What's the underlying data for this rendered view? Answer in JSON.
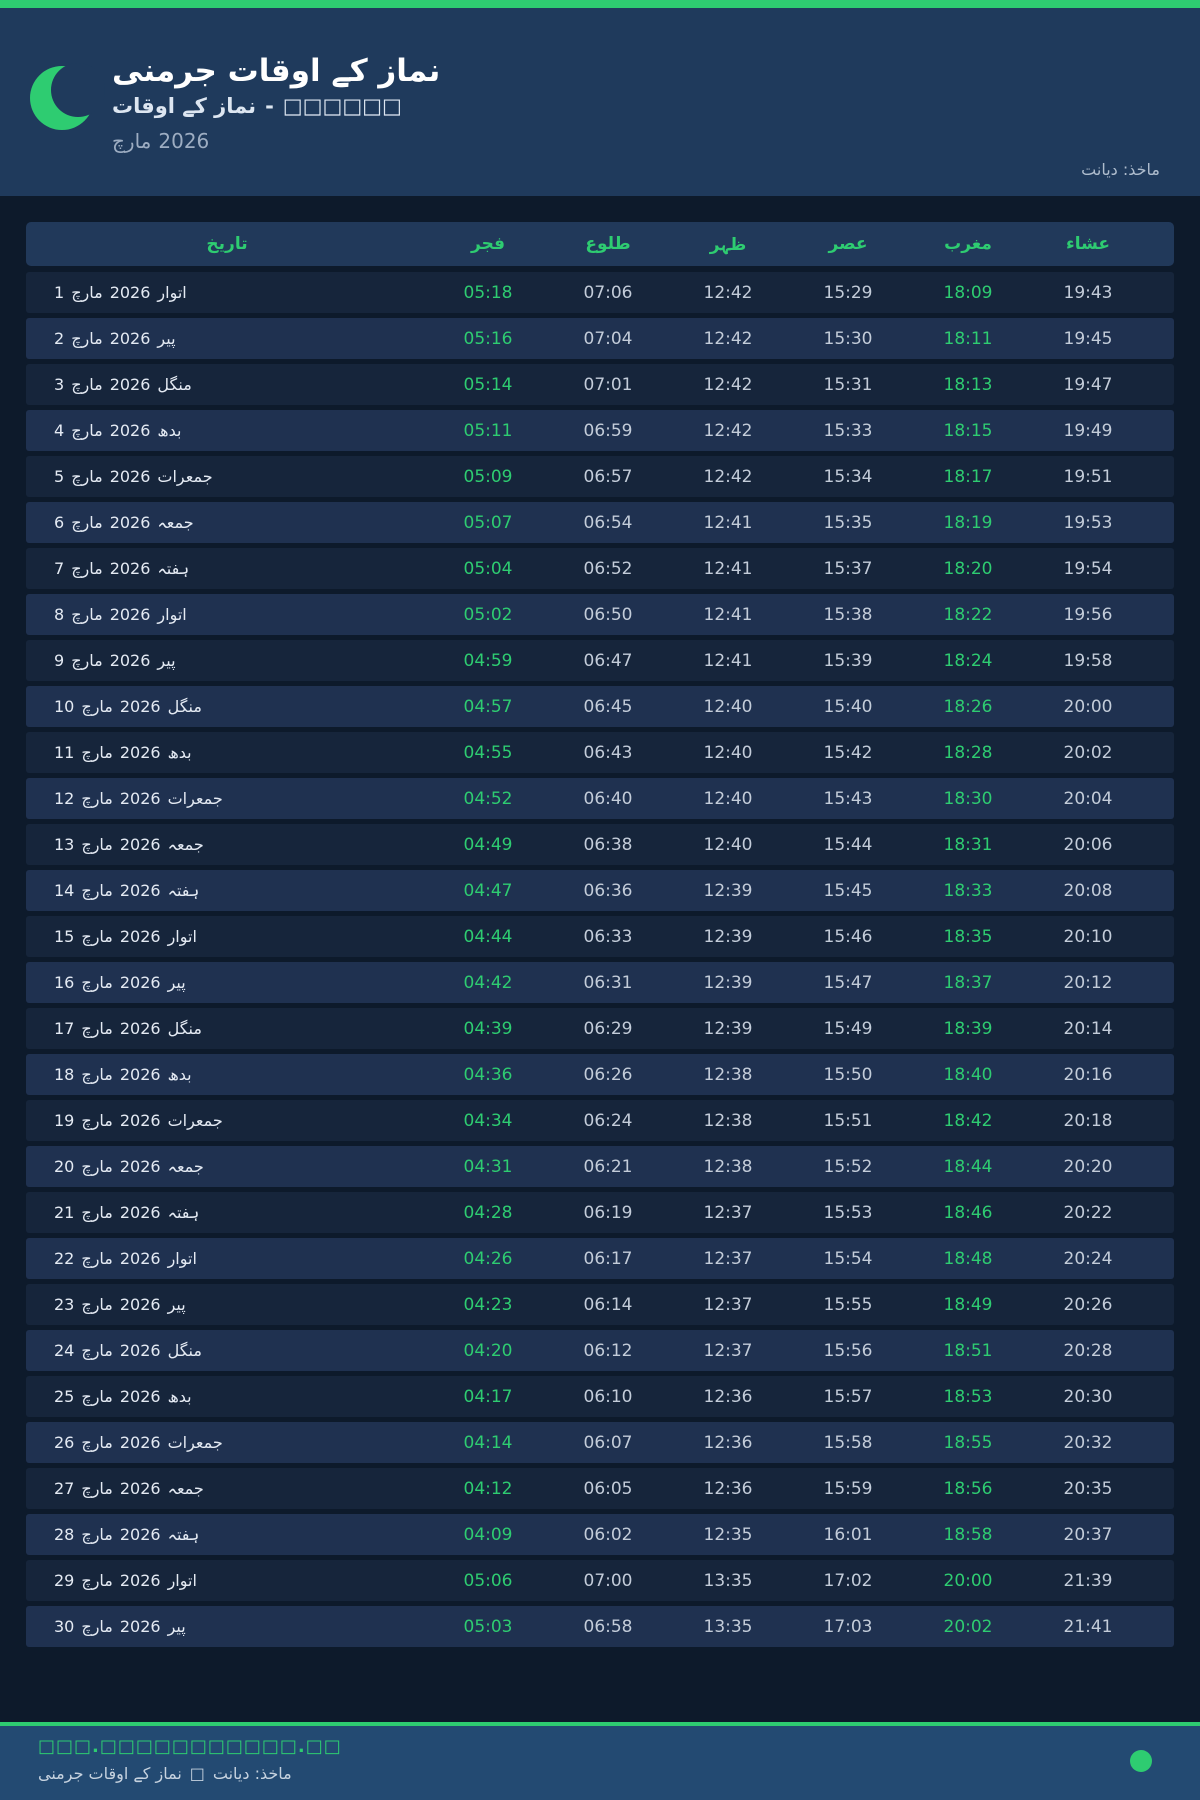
{
  "header": {
    "title": "نماز کے اوقات جرمنی",
    "subtitle_prefix": "نماز کے اوقات",
    "subtitle_separator": "-",
    "subtitle_missing_text": "□□□□□□",
    "month_label": "مارچ",
    "year": "2026",
    "source_note": "ماخذ: دیانت"
  },
  "logo": {
    "icon": "crescent-moon-icon",
    "color": "#2ecc71"
  },
  "colors": {
    "accent_green": "#2ecc71",
    "page_bg": "#0d1a2b",
    "header_bg": "#1f3a5c",
    "table_header_bg": "#21395a",
    "row_odd_bg": "#16253b",
    "row_even_bg": "#1f3150",
    "footer_bg": "#234a72",
    "time_text": "#c3ccd9",
    "date_text": "#e4eaf3"
  },
  "table": {
    "columns": [
      {
        "key": "date",
        "label": "تاریخ"
      },
      {
        "key": "fajr",
        "label": "فجر"
      },
      {
        "key": "sunrise",
        "label": "طلوع"
      },
      {
        "key": "zuhr",
        "label": "ظہر"
      },
      {
        "key": "asr",
        "label": "عصر"
      },
      {
        "key": "maghrib",
        "label": "مغرب"
      },
      {
        "key": "isha",
        "label": "عشاء"
      }
    ],
    "rows": [
      {
        "day": "1",
        "month": "مارچ",
        "year": "2026",
        "weekday": "اتوار",
        "fajr": "05:18",
        "sunrise": "07:06",
        "zuhr": "12:42",
        "asr": "15:29",
        "maghrib": "18:09",
        "isha": "19:43"
      },
      {
        "day": "2",
        "month": "مارچ",
        "year": "2026",
        "weekday": "پیر",
        "fajr": "05:16",
        "sunrise": "07:04",
        "zuhr": "12:42",
        "asr": "15:30",
        "maghrib": "18:11",
        "isha": "19:45"
      },
      {
        "day": "3",
        "month": "مارچ",
        "year": "2026",
        "weekday": "منگل",
        "fajr": "05:14",
        "sunrise": "07:01",
        "zuhr": "12:42",
        "asr": "15:31",
        "maghrib": "18:13",
        "isha": "19:47"
      },
      {
        "day": "4",
        "month": "مارچ",
        "year": "2026",
        "weekday": "بدھ",
        "fajr": "05:11",
        "sunrise": "06:59",
        "zuhr": "12:42",
        "asr": "15:33",
        "maghrib": "18:15",
        "isha": "19:49"
      },
      {
        "day": "5",
        "month": "مارچ",
        "year": "2026",
        "weekday": "جمعرات",
        "fajr": "05:09",
        "sunrise": "06:57",
        "zuhr": "12:42",
        "asr": "15:34",
        "maghrib": "18:17",
        "isha": "19:51"
      },
      {
        "day": "6",
        "month": "مارچ",
        "year": "2026",
        "weekday": "جمعہ",
        "fajr": "05:07",
        "sunrise": "06:54",
        "zuhr": "12:41",
        "asr": "15:35",
        "maghrib": "18:19",
        "isha": "19:53"
      },
      {
        "day": "7",
        "month": "مارچ",
        "year": "2026",
        "weekday": "ہفتہ",
        "fajr": "05:04",
        "sunrise": "06:52",
        "zuhr": "12:41",
        "asr": "15:37",
        "maghrib": "18:20",
        "isha": "19:54"
      },
      {
        "day": "8",
        "month": "مارچ",
        "year": "2026",
        "weekday": "اتوار",
        "fajr": "05:02",
        "sunrise": "06:50",
        "zuhr": "12:41",
        "asr": "15:38",
        "maghrib": "18:22",
        "isha": "19:56"
      },
      {
        "day": "9",
        "month": "مارچ",
        "year": "2026",
        "weekday": "پیر",
        "fajr": "04:59",
        "sunrise": "06:47",
        "zuhr": "12:41",
        "asr": "15:39",
        "maghrib": "18:24",
        "isha": "19:58"
      },
      {
        "day": "10",
        "month": "مارچ",
        "year": "2026",
        "weekday": "منگل",
        "fajr": "04:57",
        "sunrise": "06:45",
        "zuhr": "12:40",
        "asr": "15:40",
        "maghrib": "18:26",
        "isha": "20:00"
      },
      {
        "day": "11",
        "month": "مارچ",
        "year": "2026",
        "weekday": "بدھ",
        "fajr": "04:55",
        "sunrise": "06:43",
        "zuhr": "12:40",
        "asr": "15:42",
        "maghrib": "18:28",
        "isha": "20:02"
      },
      {
        "day": "12",
        "month": "مارچ",
        "year": "2026",
        "weekday": "جمعرات",
        "fajr": "04:52",
        "sunrise": "06:40",
        "zuhr": "12:40",
        "asr": "15:43",
        "maghrib": "18:30",
        "isha": "20:04"
      },
      {
        "day": "13",
        "month": "مارچ",
        "year": "2026",
        "weekday": "جمعہ",
        "fajr": "04:49",
        "sunrise": "06:38",
        "zuhr": "12:40",
        "asr": "15:44",
        "maghrib": "18:31",
        "isha": "20:06"
      },
      {
        "day": "14",
        "month": "مارچ",
        "year": "2026",
        "weekday": "ہفتہ",
        "fajr": "04:47",
        "sunrise": "06:36",
        "zuhr": "12:39",
        "asr": "15:45",
        "maghrib": "18:33",
        "isha": "20:08"
      },
      {
        "day": "15",
        "month": "مارچ",
        "year": "2026",
        "weekday": "اتوار",
        "fajr": "04:44",
        "sunrise": "06:33",
        "zuhr": "12:39",
        "asr": "15:46",
        "maghrib": "18:35",
        "isha": "20:10"
      },
      {
        "day": "16",
        "month": "مارچ",
        "year": "2026",
        "weekday": "پیر",
        "fajr": "04:42",
        "sunrise": "06:31",
        "zuhr": "12:39",
        "asr": "15:47",
        "maghrib": "18:37",
        "isha": "20:12"
      },
      {
        "day": "17",
        "month": "مارچ",
        "year": "2026",
        "weekday": "منگل",
        "fajr": "04:39",
        "sunrise": "06:29",
        "zuhr": "12:39",
        "asr": "15:49",
        "maghrib": "18:39",
        "isha": "20:14"
      },
      {
        "day": "18",
        "month": "مارچ",
        "year": "2026",
        "weekday": "بدھ",
        "fajr": "04:36",
        "sunrise": "06:26",
        "zuhr": "12:38",
        "asr": "15:50",
        "maghrib": "18:40",
        "isha": "20:16"
      },
      {
        "day": "19",
        "month": "مارچ",
        "year": "2026",
        "weekday": "جمعرات",
        "fajr": "04:34",
        "sunrise": "06:24",
        "zuhr": "12:38",
        "asr": "15:51",
        "maghrib": "18:42",
        "isha": "20:18"
      },
      {
        "day": "20",
        "month": "مارچ",
        "year": "2026",
        "weekday": "جمعہ",
        "fajr": "04:31",
        "sunrise": "06:21",
        "zuhr": "12:38",
        "asr": "15:52",
        "maghrib": "18:44",
        "isha": "20:20"
      },
      {
        "day": "21",
        "month": "مارچ",
        "year": "2026",
        "weekday": "ہفتہ",
        "fajr": "04:28",
        "sunrise": "06:19",
        "zuhr": "12:37",
        "asr": "15:53",
        "maghrib": "18:46",
        "isha": "20:22"
      },
      {
        "day": "22",
        "month": "مارچ",
        "year": "2026",
        "weekday": "اتوار",
        "fajr": "04:26",
        "sunrise": "06:17",
        "zuhr": "12:37",
        "asr": "15:54",
        "maghrib": "18:48",
        "isha": "20:24"
      },
      {
        "day": "23",
        "month": "مارچ",
        "year": "2026",
        "weekday": "پیر",
        "fajr": "04:23",
        "sunrise": "06:14",
        "zuhr": "12:37",
        "asr": "15:55",
        "maghrib": "18:49",
        "isha": "20:26"
      },
      {
        "day": "24",
        "month": "مارچ",
        "year": "2026",
        "weekday": "منگل",
        "fajr": "04:20",
        "sunrise": "06:12",
        "zuhr": "12:37",
        "asr": "15:56",
        "maghrib": "18:51",
        "isha": "20:28"
      },
      {
        "day": "25",
        "month": "مارچ",
        "year": "2026",
        "weekday": "بدھ",
        "fajr": "04:17",
        "sunrise": "06:10",
        "zuhr": "12:36",
        "asr": "15:57",
        "maghrib": "18:53",
        "isha": "20:30"
      },
      {
        "day": "26",
        "month": "مارچ",
        "year": "2026",
        "weekday": "جمعرات",
        "fajr": "04:14",
        "sunrise": "06:07",
        "zuhr": "12:36",
        "asr": "15:58",
        "maghrib": "18:55",
        "isha": "20:32"
      },
      {
        "day": "27",
        "month": "مارچ",
        "year": "2026",
        "weekday": "جمعہ",
        "fajr": "04:12",
        "sunrise": "06:05",
        "zuhr": "12:36",
        "asr": "15:59",
        "maghrib": "18:56",
        "isha": "20:35"
      },
      {
        "day": "28",
        "month": "مارچ",
        "year": "2026",
        "weekday": "ہفتہ",
        "fajr": "04:09",
        "sunrise": "06:02",
        "zuhr": "12:35",
        "asr": "16:01",
        "maghrib": "18:58",
        "isha": "20:37"
      },
      {
        "day": "29",
        "month": "مارچ",
        "year": "2026",
        "weekday": "اتوار",
        "fajr": "05:06",
        "sunrise": "07:00",
        "zuhr": "13:35",
        "asr": "17:02",
        "maghrib": "20:00",
        "isha": "21:39"
      },
      {
        "day": "30",
        "month": "مارچ",
        "year": "2026",
        "weekday": "پیر",
        "fajr": "05:03",
        "sunrise": "06:58",
        "zuhr": "13:35",
        "asr": "17:03",
        "maghrib": "20:02",
        "isha": "21:41"
      }
    ]
  },
  "footer": {
    "website_text": "□□□.□□□□□□□□□□□.□□",
    "app_label": "نماز کے اوقات جرمنی",
    "separator": "□",
    "source_note": "ماخذ: دیانت",
    "status_dot_color": "#2ecc71"
  }
}
